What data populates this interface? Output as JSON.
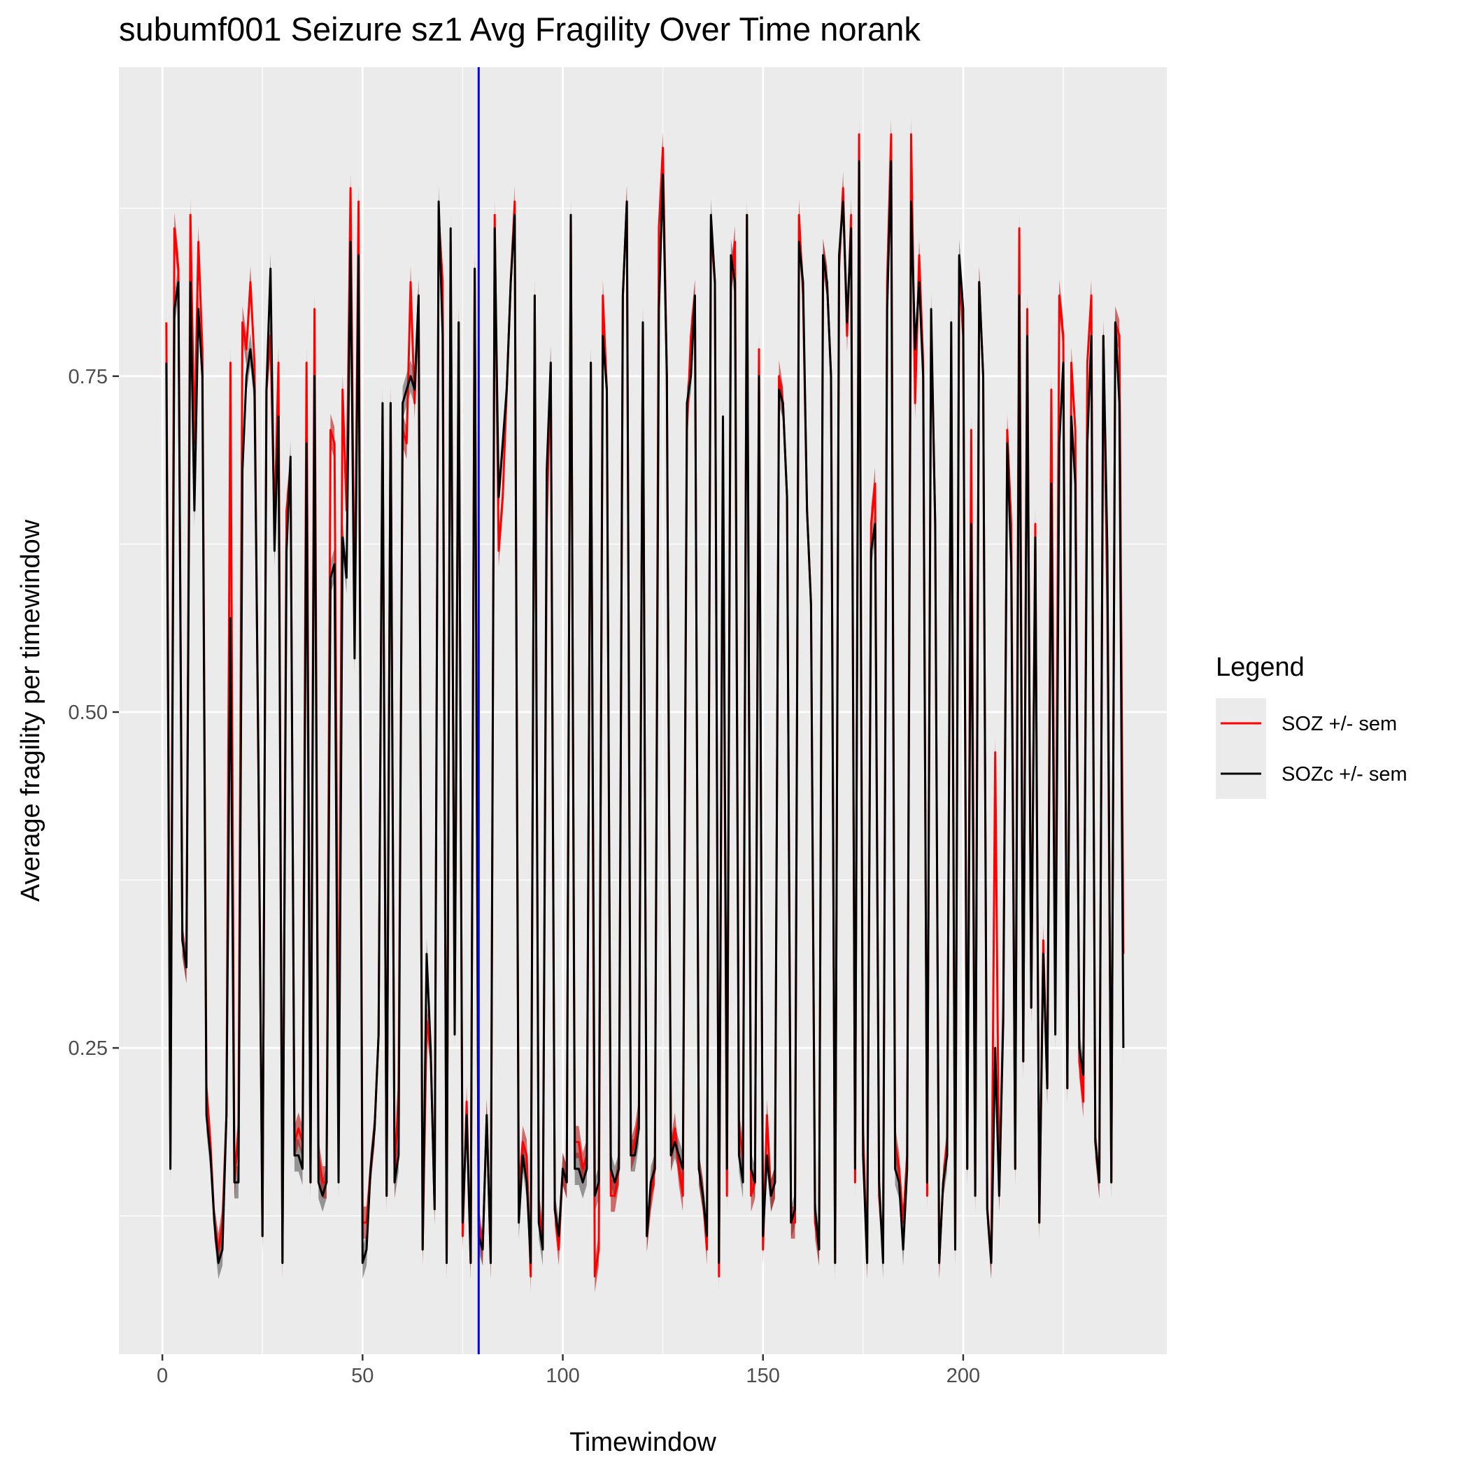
{
  "chart_data": {
    "type": "line",
    "title": "subumf001 Seizure sz1 Avg Fragility Over Time norank",
    "xlabel": "Timewindow",
    "ylabel": "Average fragility per timewindow",
    "xlim": [
      -10.85,
      250.85
    ],
    "ylim": [
      0.022,
      0.98
    ],
    "x_ticks": [
      0,
      50,
      100,
      150,
      200
    ],
    "y_ticks": [
      0.25,
      0.5,
      0.75
    ],
    "y_tick_labels": [
      "0.25",
      "0.50",
      "0.75"
    ],
    "x_tick_labels": [
      "0",
      "50",
      "100",
      "150",
      "200"
    ],
    "grid": true,
    "background": "#ebebeb",
    "legend": {
      "title": "Legend",
      "position": "right",
      "entries": [
        {
          "label": "SOZ +/- sem",
          "color": "#ff0000"
        },
        {
          "label": "SOZc +/- sem",
          "color": "#000000"
        }
      ]
    },
    "vline": {
      "x": 79,
      "color": "#0000ff"
    },
    "x_start": 1,
    "series": [
      {
        "name": "SOZ +/- sem",
        "color": "#ff0000",
        "band_color": "#b40000",
        "values": [
          0.79,
          0.17,
          0.86,
          0.83,
          0.33,
          0.31,
          0.87,
          0.7,
          0.85,
          0.77,
          0.22,
          0.18,
          0.12,
          0.1,
          0.12,
          0.2,
          0.76,
          0.15,
          0.19,
          0.79,
          0.77,
          0.82,
          0.76,
          0.45,
          0.11,
          0.74,
          0.78,
          0.64,
          0.76,
          0.09,
          0.65,
          0.68,
          0.18,
          0.19,
          0.18,
          0.76,
          0.15,
          0.8,
          0.17,
          0.15,
          0.15,
          0.71,
          0.7,
          0.2,
          0.74,
          0.65,
          0.89,
          0.56,
          0.88,
          0.12,
          0.12,
          0.16,
          0.19,
          0.26,
          0.72,
          0.14,
          0.73,
          0.15,
          0.22,
          0.71,
          0.7,
          0.82,
          0.73,
          0.81,
          0.1,
          0.27,
          0.25,
          0.13,
          0.87,
          0.82,
          0.09,
          0.85,
          0.27,
          0.79,
          0.11,
          0.21,
          0.09,
          0.83,
          0.12,
          0.1,
          0.2,
          0.09,
          0.87,
          0.62,
          0.66,
          0.74,
          0.82,
          0.88,
          0.14,
          0.18,
          0.17,
          0.08,
          0.81,
          0.13,
          0.11,
          0.64,
          0.76,
          0.13,
          0.1,
          0.16,
          0.15,
          0.87,
          0.18,
          0.18,
          0.16,
          0.17,
          0.76,
          0.08,
          0.1,
          0.81,
          0.74,
          0.14,
          0.14,
          0.16,
          0.81,
          0.88,
          0.17,
          0.18,
          0.2,
          0.79,
          0.11,
          0.14,
          0.16,
          0.86,
          0.92,
          0.75,
          0.17,
          0.19,
          0.16,
          0.14,
          0.71,
          0.78,
          0.81,
          0.16,
          0.14,
          0.1,
          0.86,
          0.82,
          0.08,
          0.7,
          0.14,
          0.82,
          0.85,
          0.19,
          0.17,
          0.87,
          0.14,
          0.15,
          0.77,
          0.1,
          0.2,
          0.14,
          0.15,
          0.75,
          0.73,
          0.66,
          0.12,
          0.12,
          0.87,
          0.81,
          0.65,
          0.58,
          0.12,
          0.1,
          0.84,
          0.82,
          0.75,
          0.09,
          0.83,
          0.89,
          0.78,
          0.87,
          0.15,
          0.93,
          0.19,
          0.09,
          0.64,
          0.67,
          0.14,
          0.1,
          0.82,
          0.93,
          0.18,
          0.16,
          0.12,
          0.17,
          0.93,
          0.73,
          0.84,
          0.76,
          0.14,
          0.79,
          0.64,
          0.09,
          0.15,
          0.18,
          0.77,
          0.1,
          0.83,
          0.78,
          0.16,
          0.71,
          0.14,
          0.82,
          0.75,
          0.13,
          0.09,
          0.47,
          0.14,
          0.28,
          0.71,
          0.64,
          0.16,
          0.86,
          0.24,
          0.8,
          0.28,
          0.64,
          0.12,
          0.33,
          0.22,
          0.74,
          0.28,
          0.81,
          0.78,
          0.22,
          0.76,
          0.71,
          0.24,
          0.21,
          0.76,
          0.81,
          0.18,
          0.15,
          0.78,
          0.58,
          0.15,
          0.79,
          0.78,
          0.32
        ]
      },
      {
        "name": "SOZc +/- sem",
        "color": "#000000",
        "band_color": "#4d4d4d",
        "values": [
          0.76,
          0.16,
          0.8,
          0.82,
          0.33,
          0.31,
          0.82,
          0.65,
          0.8,
          0.75,
          0.2,
          0.17,
          0.12,
          0.09,
          0.1,
          0.2,
          0.57,
          0.15,
          0.15,
          0.68,
          0.75,
          0.77,
          0.74,
          0.46,
          0.11,
          0.74,
          0.83,
          0.62,
          0.72,
          0.09,
          0.62,
          0.69,
          0.17,
          0.17,
          0.16,
          0.7,
          0.15,
          0.75,
          0.15,
          0.14,
          0.15,
          0.6,
          0.61,
          0.15,
          0.63,
          0.6,
          0.85,
          0.54,
          0.84,
          0.09,
          0.1,
          0.16,
          0.19,
          0.26,
          0.73,
          0.14,
          0.73,
          0.15,
          0.17,
          0.73,
          0.74,
          0.75,
          0.74,
          0.81,
          0.1,
          0.32,
          0.25,
          0.13,
          0.88,
          0.78,
          0.09,
          0.86,
          0.26,
          0.79,
          0.12,
          0.2,
          0.09,
          0.83,
          0.11,
          0.1,
          0.2,
          0.09,
          0.86,
          0.66,
          0.7,
          0.74,
          0.82,
          0.87,
          0.12,
          0.17,
          0.15,
          0.09,
          0.81,
          0.12,
          0.1,
          0.68,
          0.76,
          0.13,
          0.11,
          0.16,
          0.15,
          0.87,
          0.16,
          0.16,
          0.15,
          0.16,
          0.76,
          0.14,
          0.15,
          0.78,
          0.74,
          0.16,
          0.15,
          0.16,
          0.81,
          0.88,
          0.17,
          0.17,
          0.19,
          0.79,
          0.11,
          0.15,
          0.16,
          0.8,
          0.9,
          0.75,
          0.17,
          0.18,
          0.17,
          0.16,
          0.73,
          0.75,
          0.81,
          0.16,
          0.14,
          0.11,
          0.87,
          0.82,
          0.09,
          0.72,
          0.16,
          0.84,
          0.82,
          0.17,
          0.15,
          0.87,
          0.16,
          0.15,
          0.75,
          0.11,
          0.17,
          0.14,
          0.15,
          0.74,
          0.73,
          0.66,
          0.12,
          0.13,
          0.85,
          0.82,
          0.65,
          0.58,
          0.13,
          0.1,
          0.84,
          0.82,
          0.75,
          0.09,
          0.84,
          0.88,
          0.79,
          0.86,
          0.16,
          0.91,
          0.17,
          0.09,
          0.62,
          0.64,
          0.15,
          0.09,
          0.8,
          0.91,
          0.16,
          0.15,
          0.1,
          0.16,
          0.88,
          0.77,
          0.82,
          0.75,
          0.15,
          0.8,
          0.64,
          0.09,
          0.15,
          0.17,
          0.79,
          0.1,
          0.84,
          0.8,
          0.16,
          0.64,
          0.14,
          0.82,
          0.75,
          0.13,
          0.09,
          0.25,
          0.14,
          0.27,
          0.7,
          0.61,
          0.16,
          0.81,
          0.24,
          0.78,
          0.28,
          0.63,
          0.12,
          0.32,
          0.22,
          0.67,
          0.26,
          0.7,
          0.76,
          0.22,
          0.72,
          0.67,
          0.25,
          0.23,
          0.7,
          0.78,
          0.18,
          0.15,
          0.78,
          0.62,
          0.15,
          0.79,
          0.73,
          0.25
        ]
      }
    ]
  }
}
